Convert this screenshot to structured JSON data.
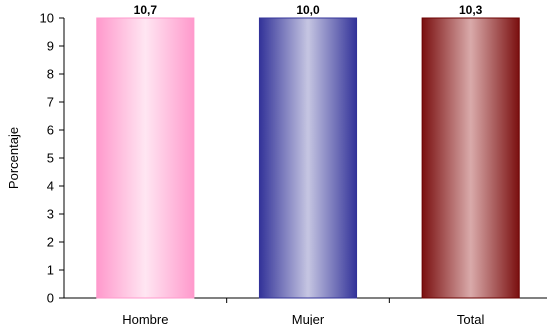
{
  "chart_data": {
    "type": "bar",
    "categories": [
      "Hombre",
      "Mujer",
      "Total"
    ],
    "values": [
      10.7,
      10.0,
      10.3
    ],
    "value_labels": [
      "10,7",
      "10,0",
      "10,3"
    ],
    "title": "",
    "xlabel": "",
    "ylabel": "Porcentaje",
    "ylim": [
      0,
      10
    ],
    "yticks": [
      0,
      1,
      2,
      3,
      4,
      5,
      6,
      7,
      8,
      9,
      10
    ],
    "grid": false,
    "legend": "none",
    "bar_colors": [
      {
        "edge": "#ff99cc",
        "center": "#ffe6f2",
        "stroke": "#ff99cc"
      },
      {
        "edge": "#333399",
        "center": "#c6c6e2",
        "stroke": "#333399"
      },
      {
        "edge": "#7a0f0f",
        "center": "#d9aaaa",
        "stroke": "#6b0000"
      }
    ]
  }
}
